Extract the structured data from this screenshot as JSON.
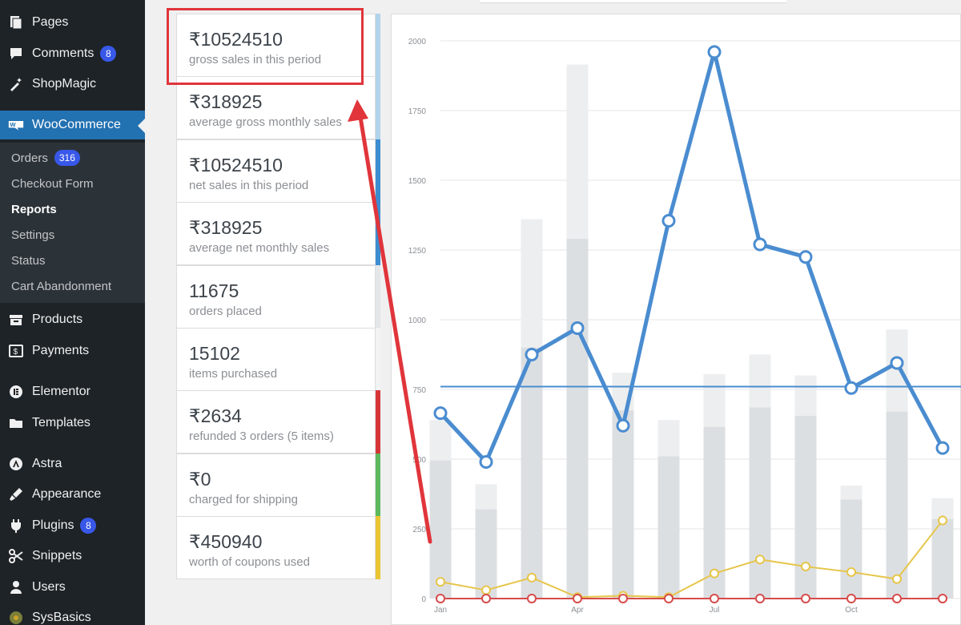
{
  "sidebar": {
    "items": [
      {
        "label": "Pages",
        "icon": "pages-icon",
        "top": 10
      },
      {
        "label": "Comments",
        "icon": "comments-icon",
        "badge": "8",
        "top": 49
      },
      {
        "label": "ShopMagic",
        "icon": "magic-wand-icon",
        "top": 87
      },
      {
        "label": "WooCommerce",
        "icon": "woocommerce-icon",
        "active": true,
        "top": 138
      },
      {
        "label": "Products",
        "icon": "products-icon",
        "top": 381
      },
      {
        "label": "Payments",
        "icon": "payments-icon",
        "top": 420
      },
      {
        "label": "Elementor",
        "icon": "elementor-icon",
        "top": 471
      },
      {
        "label": "Templates",
        "icon": "templates-icon",
        "top": 510
      },
      {
        "label": "Astra",
        "icon": "astra-icon",
        "top": 561
      },
      {
        "label": "Appearance",
        "icon": "appearance-icon",
        "top": 599
      },
      {
        "label": "Plugins",
        "icon": "plugins-icon",
        "badge": "8",
        "top": 638
      },
      {
        "label": "Snippets",
        "icon": "snippets-icon",
        "top": 676
      },
      {
        "label": "Users",
        "icon": "users-icon",
        "top": 715
      },
      {
        "label": "SysBasics",
        "icon": "sysbasics-icon",
        "top": 753
      }
    ],
    "submenu": [
      {
        "label": "Orders",
        "badge": "316",
        "top": 188
      },
      {
        "label": "Checkout Form",
        "top": 220
      },
      {
        "label": "Reports",
        "current": true,
        "top": 252
      },
      {
        "label": "Settings",
        "top": 284
      },
      {
        "label": "Status",
        "top": 316
      },
      {
        "label": "Cart Abandonment",
        "top": 348
      }
    ]
  },
  "legend": {
    "stats": [
      {
        "amount": "₹10524510",
        "description": "gross sales in this period",
        "color": "#b1d4ea"
      },
      {
        "amount": "₹318925",
        "description": "average gross monthly sales",
        "color": "#b1d4ea"
      },
      {
        "amount": "₹10524510",
        "description": "net sales in this period",
        "color": "#3c8dd0"
      },
      {
        "amount": "₹318925",
        "description": "average net monthly sales",
        "color": "#3c8dd0"
      },
      {
        "amount": "11675",
        "description": "orders placed",
        "color": "#e4e6e8"
      },
      {
        "amount": "15102",
        "description": "items purchased",
        "color": "#f3f3f4"
      },
      {
        "amount": "₹2634",
        "description": "refunded 3 orders (5 items)",
        "color": "#d63638"
      },
      {
        "amount": "₹0",
        "description": "charged for shipping",
        "color": "#5cb85c"
      },
      {
        "amount": "₹450940",
        "description": "worth of coupons used",
        "color": "#e9c631"
      }
    ]
  },
  "chart_data": {
    "type": "line",
    "x_tick_labels": [
      "Jan",
      "Apr",
      "Jul",
      "Oct"
    ],
    "y_ticks": [
      0,
      250,
      500,
      750,
      1000,
      1250,
      1500,
      1750,
      2000
    ],
    "ylim": [
      0,
      2000
    ],
    "grid": true,
    "bars": {
      "items_purchased": [
        640,
        410,
        1360,
        1915,
        810,
        640,
        805,
        875,
        800,
        405,
        965,
        360
      ],
      "orders_placed": [
        495,
        320,
        900,
        1290,
        675,
        510,
        615,
        685,
        655,
        355,
        670,
        285
      ]
    },
    "series": [
      {
        "key": "net_sales",
        "color": "#4a8cd0",
        "values": [
          665,
          490,
          875,
          970,
          620,
          1355,
          1960,
          1270,
          1225,
          755,
          845,
          540
        ]
      },
      {
        "key": "coupons",
        "color": "#e6c54a",
        "values": [
          60,
          30,
          75,
          5,
          10,
          5,
          90,
          140,
          115,
          95,
          70,
          280
        ]
      },
      {
        "key": "refunds",
        "color": "#d64b4b",
        "values": [
          0,
          0,
          0,
          0,
          0,
          0,
          0,
          0,
          0,
          0,
          0,
          0
        ]
      }
    ],
    "average_line": {
      "value": 760,
      "color": "#4a8cd0"
    }
  },
  "colors": {
    "accent": "#2271b1",
    "annotation": "#e0353b"
  }
}
